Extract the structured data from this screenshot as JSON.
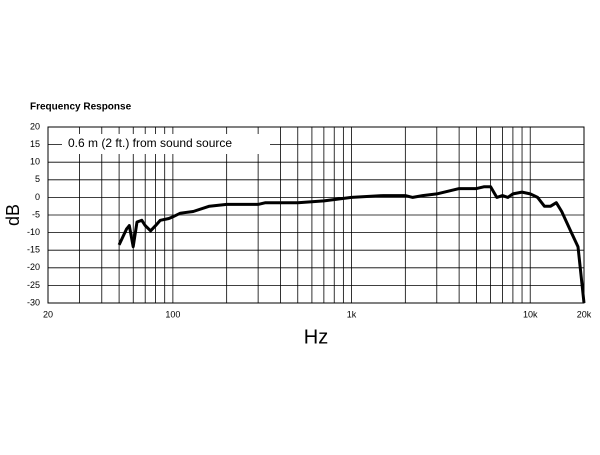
{
  "chart_data": {
    "type": "line",
    "title": "Frequency Response",
    "annotation": "0.6 m (2 ft.) from sound source",
    "xlabel": "Hz",
    "ylabel": "dB",
    "xscale": "log",
    "grid": true,
    "xlim": [
      20,
      20000
    ],
    "ylim": [
      -30,
      20
    ],
    "xticks": [
      20,
      100,
      {
        "value": 1000,
        "label": "1k"
      },
      {
        "value": 10000,
        "label": "10k"
      },
      {
        "value": 20000,
        "label": "20k"
      }
    ],
    "xgrid": [
      30,
      40,
      50,
      60,
      70,
      80,
      90,
      200,
      300,
      400,
      500,
      600,
      700,
      800,
      900,
      2000,
      3000,
      4000,
      5000,
      6000,
      7000,
      8000,
      9000
    ],
    "yticks": [
      20,
      15,
      10,
      5,
      0,
      -5,
      -10,
      -15,
      -20,
      -25,
      -30
    ],
    "series": [
      {
        "color": "#000000",
        "x": [
          50,
          55,
          57,
          60,
          63,
          67,
          70,
          75,
          80,
          85,
          95,
          100,
          110,
          130,
          160,
          200,
          300,
          330,
          500,
          700,
          1000,
          1500,
          2000,
          2200,
          2500,
          3000,
          4000,
          5000,
          5500,
          6000,
          6500,
          7000,
          7500,
          8000,
          9000,
          10000,
          11000,
          12000,
          13000,
          14000,
          15000,
          17000,
          18500,
          20000
        ],
        "values": [
          -13.5,
          -9,
          -8,
          -14,
          -7,
          -6.5,
          -8,
          -9.5,
          -8,
          -6.5,
          -6,
          -5.5,
          -4.5,
          -4,
          -2.5,
          -2,
          -2,
          -1.5,
          -1.5,
          -1,
          0,
          0.5,
          0.5,
          0,
          0.5,
          1,
          2.5,
          2.5,
          3,
          3,
          0,
          0.5,
          0,
          1,
          1.5,
          1,
          0,
          -2.5,
          -2.5,
          -1.5,
          -4,
          -10,
          -14,
          -30
        ]
      }
    ]
  }
}
